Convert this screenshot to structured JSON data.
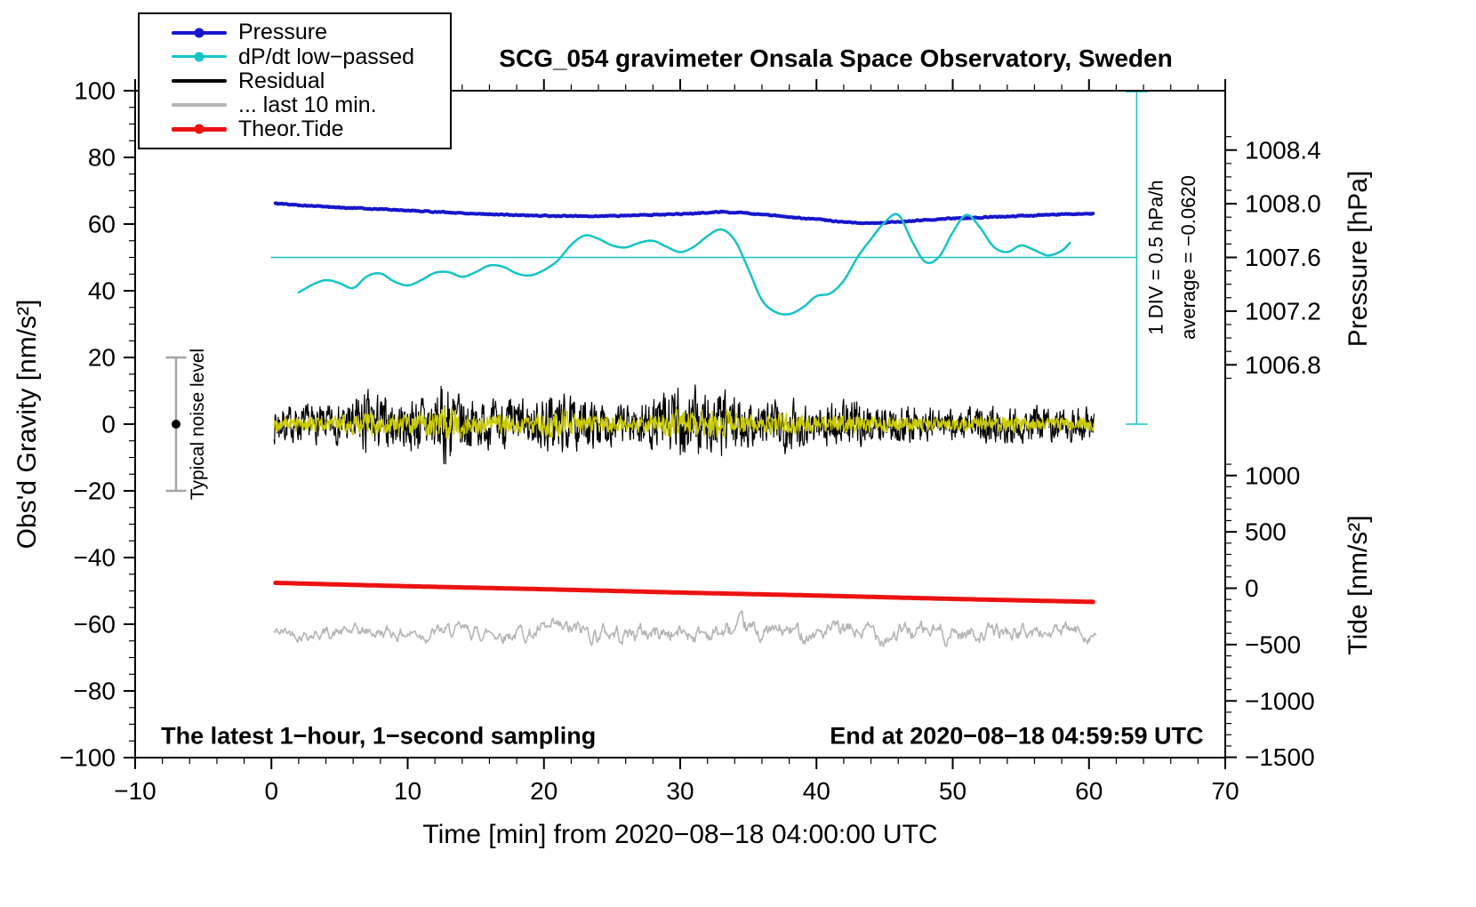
{
  "chart_data": {
    "type": "line",
    "title": "SCG_054 gravimeter Onsala Space Observatory, Sweden",
    "xlim": [
      -10,
      70
    ],
    "ylim": [
      -100,
      100
    ],
    "grid": false,
    "footnote_left": "The latest 1−hour, 1−second sampling",
    "footnote_right": "End at 2020−08−18 04:59:59 UTC",
    "axes": {
      "x": {
        "label": "Time [min] from 2020−08−18 04:00:00 UTC",
        "majors": [
          {
            "v": -10,
            "label": "−10"
          },
          {
            "v": 0,
            "label": "0"
          },
          {
            "v": 10,
            "label": "10"
          },
          {
            "v": 20,
            "label": "20"
          },
          {
            "v": 30,
            "label": "30"
          },
          {
            "v": 40,
            "label": "40"
          },
          {
            "v": 50,
            "label": "50"
          },
          {
            "v": 60,
            "label": "60"
          },
          {
            "v": 70,
            "label": "70"
          }
        ],
        "minor_step": 2
      },
      "y_left": {
        "label": "Obs'd Gravity [nm/s²]",
        "majors": [
          {
            "v": 100,
            "label": "100"
          },
          {
            "v": 80,
            "label": "80"
          },
          {
            "v": 60,
            "label": "60"
          },
          {
            "v": 40,
            "label": "40"
          },
          {
            "v": 20,
            "label": "20"
          },
          {
            "v": 0,
            "label": "0"
          },
          {
            "v": -20,
            "label": "−20"
          },
          {
            "v": -40,
            "label": "−40"
          },
          {
            "v": -60,
            "label": "−60"
          },
          {
            "v": -80,
            "label": "−80"
          },
          {
            "v": -100,
            "label": "−100"
          }
        ],
        "minor_step": 5
      },
      "y_pressure": {
        "label": "Pressure [hPa]",
        "ref_value": 1007.6,
        "ref_g": 50,
        "g_per_unit": 40.25,
        "majors": [
          "1008.4",
          "1008.0",
          "1007.6",
          "1007.2",
          "1006.8"
        ],
        "minor_step": 0.1,
        "minor_range": [
          1006.7,
          1008.5
        ]
      },
      "y_tide": {
        "label": "Tide [nm/s²]",
        "ref_value": 0,
        "ref_g": -49.2,
        "g_per_unit": 0.0338,
        "majors": [
          {
            "v": 1000,
            "label": "1000"
          },
          {
            "v": 500,
            "label": "500"
          },
          {
            "v": 0,
            "label": "0"
          },
          {
            "v": -500,
            "label": "−500"
          },
          {
            "v": -1000,
            "label": "−1000"
          },
          {
            "v": -1500,
            "label": "−1500"
          }
        ],
        "minor_step": 100,
        "minor_range": [
          -1500,
          1100
        ]
      }
    },
    "legend": {
      "items": [
        {
          "label": "Pressure",
          "color": "#1616cc",
          "marker": true,
          "thickness": 4
        },
        {
          "label": "dP/dt low−passed",
          "color": "#15c4c4",
          "marker": true,
          "thickness": 3
        },
        {
          "label": "Residual",
          "color": "#000000",
          "marker": false,
          "thickness": 3.5
        },
        {
          "label": "... last 10 min.",
          "color": "#b5b5b5",
          "marker": false,
          "thickness": 3.5
        },
        {
          "label": "Theor.Tide",
          "color": "#ec1212",
          "marker": true,
          "thickness": 4.5
        }
      ]
    },
    "series": [
      {
        "name": "dpdt-reference-line",
        "type": "segment",
        "color": "#15c4c4",
        "width": 1.5,
        "points": [
          [
            0,
            50
          ],
          [
            63.5,
            50
          ]
        ]
      },
      {
        "name": "dpdt-scale-bar",
        "type": "errorbar-v",
        "x": 63.5,
        "y0": 0,
        "y1": 99.7,
        "cap": 0.8,
        "color": "#15c4c4",
        "width": 1.5
      },
      {
        "name": "residual-last10min",
        "type": "noise",
        "color": "#b5b5b5",
        "width": 1.6,
        "baseline": -62.5,
        "x0": 0.2,
        "x1": 60.5,
        "step": 0.0667,
        "ar": 0.8,
        "k": 0.55,
        "seed": 42,
        "envelope": [
          [
            0.2,
            2.2
          ],
          [
            5,
            2.4
          ],
          [
            10,
            2.6
          ],
          [
            15,
            2.6
          ],
          [
            20,
            3.0
          ],
          [
            22,
            3.6
          ],
          [
            25,
            3.2
          ],
          [
            28,
            3.6
          ],
          [
            30,
            3.2
          ],
          [
            33,
            3.4
          ],
          [
            35,
            3.6
          ],
          [
            38,
            3.2
          ],
          [
            40,
            3.0
          ],
          [
            42,
            3.2
          ],
          [
            45,
            3.6
          ],
          [
            47,
            3.2
          ],
          [
            50,
            3.4
          ],
          [
            52,
            2.8
          ],
          [
            55,
            3.0
          ],
          [
            58,
            2.8
          ],
          [
            60.4,
            2.6
          ]
        ]
      },
      {
        "name": "theoretical-tide",
        "type": "smooth",
        "color": "#ec1212",
        "width": 5,
        "points": [
          [
            0.3,
            -47.6
          ],
          [
            10,
            -48.6
          ],
          [
            20,
            -49.5
          ],
          [
            30,
            -50.5
          ],
          [
            40,
            -51.4
          ],
          [
            50,
            -52.4
          ],
          [
            60.3,
            -53.3
          ]
        ]
      },
      {
        "name": "residual",
        "type": "noise",
        "color": "#000000",
        "width": 1.2,
        "baseline": 0,
        "x0": 0.2,
        "x1": 60.4,
        "step": 0.0333,
        "ar": 0.35,
        "k": 0.7,
        "seed": 7,
        "envelope": [
          [
            0.2,
            7
          ],
          [
            2,
            6.5
          ],
          [
            4,
            6.5
          ],
          [
            5,
            7
          ],
          [
            6,
            9
          ],
          [
            7,
            12
          ],
          [
            8,
            10
          ],
          [
            9,
            8
          ],
          [
            10,
            9
          ],
          [
            11,
            11
          ],
          [
            12,
            12
          ],
          [
            13,
            16
          ],
          [
            14,
            11
          ],
          [
            15,
            9
          ],
          [
            16,
            8
          ],
          [
            18,
            9
          ],
          [
            19,
            8
          ],
          [
            20,
            10
          ],
          [
            21,
            12
          ],
          [
            22,
            9
          ],
          [
            24,
            8
          ],
          [
            26,
            7
          ],
          [
            27,
            8
          ],
          [
            28,
            9
          ],
          [
            29,
            12
          ],
          [
            30,
            14
          ],
          [
            31,
            12
          ],
          [
            32,
            13
          ],
          [
            33,
            12
          ],
          [
            34,
            10
          ],
          [
            35,
            8
          ],
          [
            37,
            9
          ],
          [
            38,
            10
          ],
          [
            39,
            8
          ],
          [
            40,
            7
          ],
          [
            42,
            9
          ],
          [
            43,
            8
          ],
          [
            44,
            7
          ],
          [
            45,
            6.5
          ],
          [
            47,
            7
          ],
          [
            48,
            6
          ],
          [
            50,
            6
          ],
          [
            54,
            7
          ],
          [
            56,
            6
          ],
          [
            60.4,
            6
          ]
        ]
      },
      {
        "name": "residual-lowpassed-overlay",
        "type": "noise",
        "color": "#cbcb00",
        "width": 1.3,
        "baseline": 0,
        "x0": 0.2,
        "x1": 60.4,
        "step": 0.0333,
        "ar": 0.3,
        "k": 0.7,
        "amp_scale": 0.42,
        "seed": 99,
        "envelope_ref": "residual"
      },
      {
        "name": "pressure",
        "type": "smooth",
        "color": "#1616cc",
        "width": 4,
        "jitter": 0.14,
        "seed": 5,
        "points": [
          [
            0.3,
            66.2
          ],
          [
            2,
            65.7
          ],
          [
            4,
            65.2
          ],
          [
            6,
            64.8
          ],
          [
            8,
            64.5
          ],
          [
            10,
            64.1
          ],
          [
            12,
            63.7
          ],
          [
            14,
            63.3
          ],
          [
            16,
            63.0
          ],
          [
            18,
            62.7
          ],
          [
            20,
            62.5
          ],
          [
            22,
            62.4
          ],
          [
            24,
            62.4
          ],
          [
            26,
            62.6
          ],
          [
            28,
            62.8
          ],
          [
            30,
            63.0
          ],
          [
            32,
            63.4
          ],
          [
            33,
            63.7
          ],
          [
            34,
            63.5
          ],
          [
            36,
            62.9
          ],
          [
            38,
            62.1
          ],
          [
            40,
            61.4
          ],
          [
            42,
            60.7
          ],
          [
            44,
            60.3
          ],
          [
            46,
            60.7
          ],
          [
            48,
            61.2
          ],
          [
            50,
            61.7
          ],
          [
            52,
            62.0
          ],
          [
            54,
            62.3
          ],
          [
            56,
            62.6
          ],
          [
            58,
            62.9
          ],
          [
            60.3,
            63.1
          ]
        ]
      },
      {
        "name": "dpdt-lowpassed",
        "type": "smooth",
        "color": "#15c4c4",
        "width": 2.5,
        "points": [
          [
            2,
            39.5
          ],
          [
            3,
            41.8
          ],
          [
            4,
            43.2
          ],
          [
            5,
            42.3
          ],
          [
            6,
            40.8
          ],
          [
            7,
            44.3
          ],
          [
            8,
            45.2
          ],
          [
            9,
            42.8
          ],
          [
            10,
            41.6
          ],
          [
            11,
            43.2
          ],
          [
            12,
            45.4
          ],
          [
            13,
            45.6
          ],
          [
            14,
            44.2
          ],
          [
            15,
            45.6
          ],
          [
            16,
            47.6
          ],
          [
            17,
            47.2
          ],
          [
            18,
            45.2
          ],
          [
            19,
            44.6
          ],
          [
            20,
            46.2
          ],
          [
            21,
            49.0
          ],
          [
            22,
            53.8
          ],
          [
            23,
            56.6
          ],
          [
            24,
            55.6
          ],
          [
            25,
            53.6
          ],
          [
            26,
            53.0
          ],
          [
            27,
            54.4
          ],
          [
            28,
            55.0
          ],
          [
            29,
            53.2
          ],
          [
            30,
            51.6
          ],
          [
            31,
            53.2
          ],
          [
            32,
            56.4
          ],
          [
            33,
            58.4
          ],
          [
            34,
            55.2
          ],
          [
            35,
            46.5
          ],
          [
            36,
            37.2
          ],
          [
            37,
            33.6
          ],
          [
            38,
            33.0
          ],
          [
            39,
            35.0
          ],
          [
            40,
            38.4
          ],
          [
            41,
            39.2
          ],
          [
            42,
            43.0
          ],
          [
            43,
            50.0
          ],
          [
            44,
            55.5
          ],
          [
            45,
            60.5
          ],
          [
            46,
            62.8
          ],
          [
            47,
            55.0
          ],
          [
            48,
            48.6
          ],
          [
            49,
            50.2
          ],
          [
            50,
            57.5
          ],
          [
            51,
            62.8
          ],
          [
            52,
            59.0
          ],
          [
            53,
            53.2
          ],
          [
            54,
            51.6
          ],
          [
            55,
            53.6
          ],
          [
            56,
            52.2
          ],
          [
            57,
            50.6
          ],
          [
            58,
            52.0
          ],
          [
            58.6,
            54.4
          ]
        ]
      },
      {
        "name": "noise-level-bar",
        "type": "errorbar-v",
        "x": -7,
        "y0": -20,
        "y1": 20,
        "cap": 0.75,
        "color": "#a6a6a6",
        "width": 2.5,
        "dot": {
          "y": 0,
          "r": 5,
          "color": "#000000"
        }
      }
    ],
    "annotations": [
      {
        "text": "Typical noise level",
        "x": -5.4,
        "y": 0,
        "rotate": -90,
        "size": 21,
        "anchor": "middle",
        "name": "typical-noise-level-label"
      },
      {
        "text": "1 DIV = 0.5 hPa/h",
        "x": 64.9,
        "y": 50,
        "rotate": -90,
        "size": 22,
        "anchor": "middle",
        "name": "dpdt-scale-label"
      },
      {
        "text": "average = −0.0620",
        "x": 67.3,
        "y": 50,
        "rotate": -90,
        "size": 22,
        "anchor": "middle",
        "name": "dpdt-average-label"
      },
      {
        "text": "The latest 1−hour, 1−second sampling",
        "x": -8.1,
        "y": -93.5,
        "size": 27,
        "weight": "bold",
        "anchor": "start",
        "name": "sampling-info-label"
      },
      {
        "text": "End at 2020−08−18 04:59:59 UTC",
        "x": 68.4,
        "y": -93.5,
        "size": 27,
        "weight": "bold",
        "anchor": "end",
        "name": "end-time-label"
      }
    ]
  }
}
